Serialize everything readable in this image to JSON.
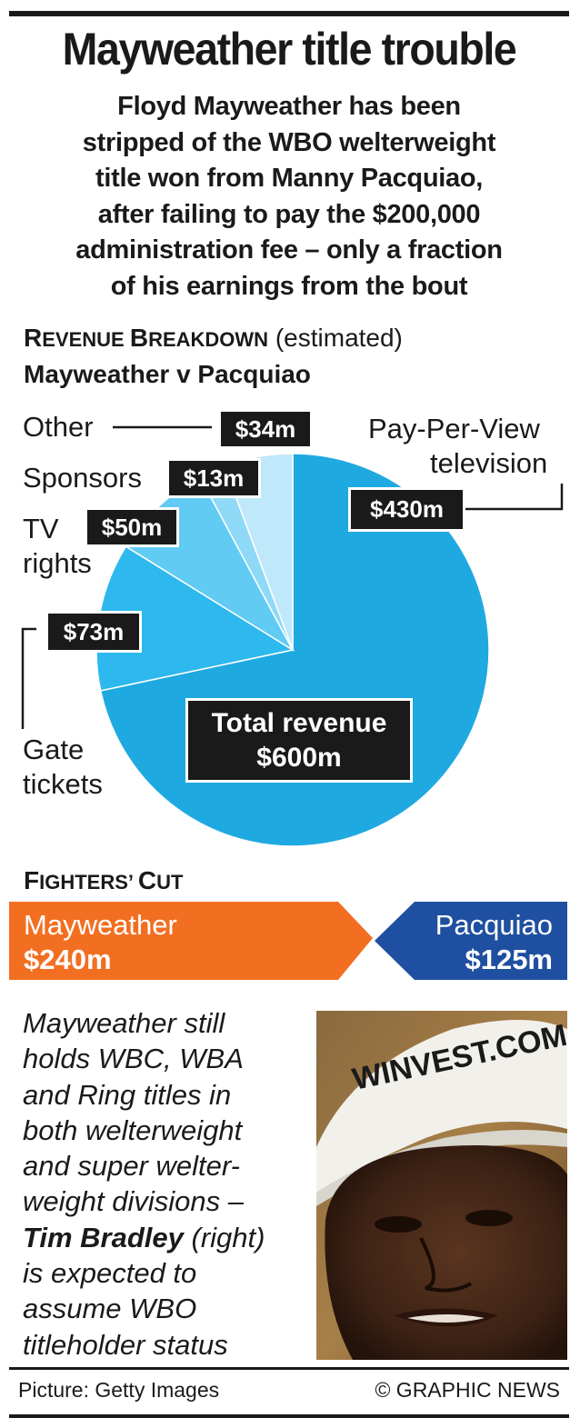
{
  "header": {
    "title": "Mayweather title trouble",
    "intro": [
      "Floyd Mayweather has been",
      "stripped of the WBO welterweight",
      "title won from Manny Pacquiao,",
      "after failing to pay the $200,000",
      "administration fee – only a fraction",
      "of his earnings from the bout"
    ]
  },
  "revenue_section": {
    "heading_r": "R",
    "heading_rest1": "EVENUE ",
    "heading_b": "B",
    "heading_rest2": "REAKDOWN",
    "heading_note": "(estimated)",
    "subheading": "Mayweather v Pacquiao"
  },
  "chart_data": {
    "type": "pie",
    "title": "Revenue Breakdown (estimated)",
    "subtitle": "Mayweather v Pacquiao",
    "slices": [
      {
        "label": "Pay-Per-View television",
        "value": 430,
        "value_label": "$430m",
        "color": "#1fa9e1"
      },
      {
        "label": "Gate tickets",
        "value": 73,
        "value_label": "$73m",
        "color": "#2db8ee"
      },
      {
        "label": "TV rights",
        "value": 50,
        "value_label": "$50m",
        "color": "#62cbf3"
      },
      {
        "label": "Sponsors",
        "value": 13,
        "value_label": "$13m",
        "color": "#8ed9f6"
      },
      {
        "label": "Other",
        "value": 34,
        "value_label": "$34m",
        "color": "#bfe8fa"
      }
    ],
    "total_label": "Total revenue",
    "total_value": "$600m",
    "units": "$m"
  },
  "labels": {
    "other": "Other",
    "sponsors": "Sponsors",
    "tv_1": "TV",
    "tv_2": "rights",
    "ppv_1": "Pay-Per-View",
    "ppv_2": "television",
    "gate_1": "Gate",
    "gate_2": "tickets"
  },
  "fighters": {
    "heading_f": "F",
    "heading_rest1": "IGHTERS",
    "heading_apos": "’ ",
    "heading_c": "C",
    "heading_rest2": "UT",
    "mayweather_name": "Mayweather",
    "mayweather_value": "$240m",
    "pacquiao_name": "Pacquiao",
    "pacquiao_value": "$125m",
    "mayweather_color": "#f26f21",
    "pacquiao_color": "#1f4fa0",
    "mayweather_amount": 240,
    "pacquiao_amount": 125
  },
  "note": {
    "line1": "Mayweather still",
    "line2": "holds WBC, WBA",
    "line3": "and Ring titles in",
    "line4": "both welterweight",
    "line5": "and super welter-",
    "line6": "weight divisions –",
    "bold_name": "Tim Bradley",
    "line7_rest": " (right)",
    "line8": "is expected to",
    "line9": "assume WBO",
    "line10": "titleholder status",
    "photo_cap_text": "WINVEST.COM"
  },
  "footer": {
    "credit": "Picture: Getty Images",
    "source": "© GRAPHIC NEWS"
  }
}
